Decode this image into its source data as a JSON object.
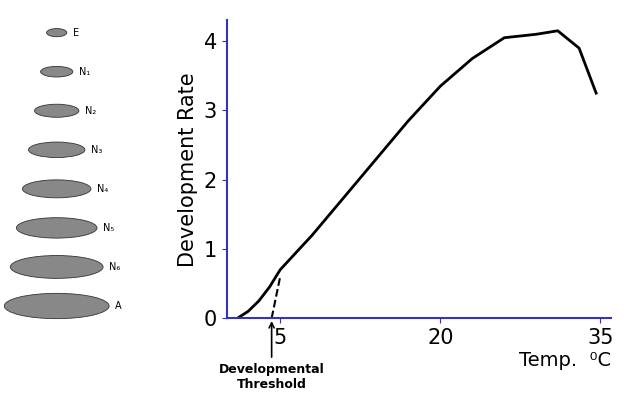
{
  "chart_data": {
    "type": "line",
    "x_label": "Temp.  ⁰C",
    "y_label": "Development Rate",
    "x": [
      1,
      2,
      3,
      4,
      5,
      8,
      11,
      14,
      17,
      20,
      23,
      26,
      29,
      31,
      33,
      34.6
    ],
    "values": [
      0.0,
      0.1,
      0.25,
      0.45,
      0.7,
      1.2,
      1.75,
      2.3,
      2.85,
      3.35,
      3.75,
      4.05,
      4.1,
      4.15,
      3.9,
      3.25
    ],
    "color": "#000000",
    "xlim": [
      0,
      36
    ],
    "xticks": [
      5,
      20,
      35
    ],
    "ylim": [
      0,
      4.3
    ],
    "yticks": [
      0,
      1,
      2,
      3,
      4
    ],
    "threshold": {
      "label": "Developmental\nThreshold",
      "x": [
        4.2,
        5
      ],
      "values": [
        0,
        0.6
      ],
      "line_style": "dashed"
    },
    "stages": [
      "E",
      "N₁",
      "N₂",
      "N₃",
      "N₄",
      "N₅",
      "N₆",
      "A"
    ],
    "grid": false
  }
}
